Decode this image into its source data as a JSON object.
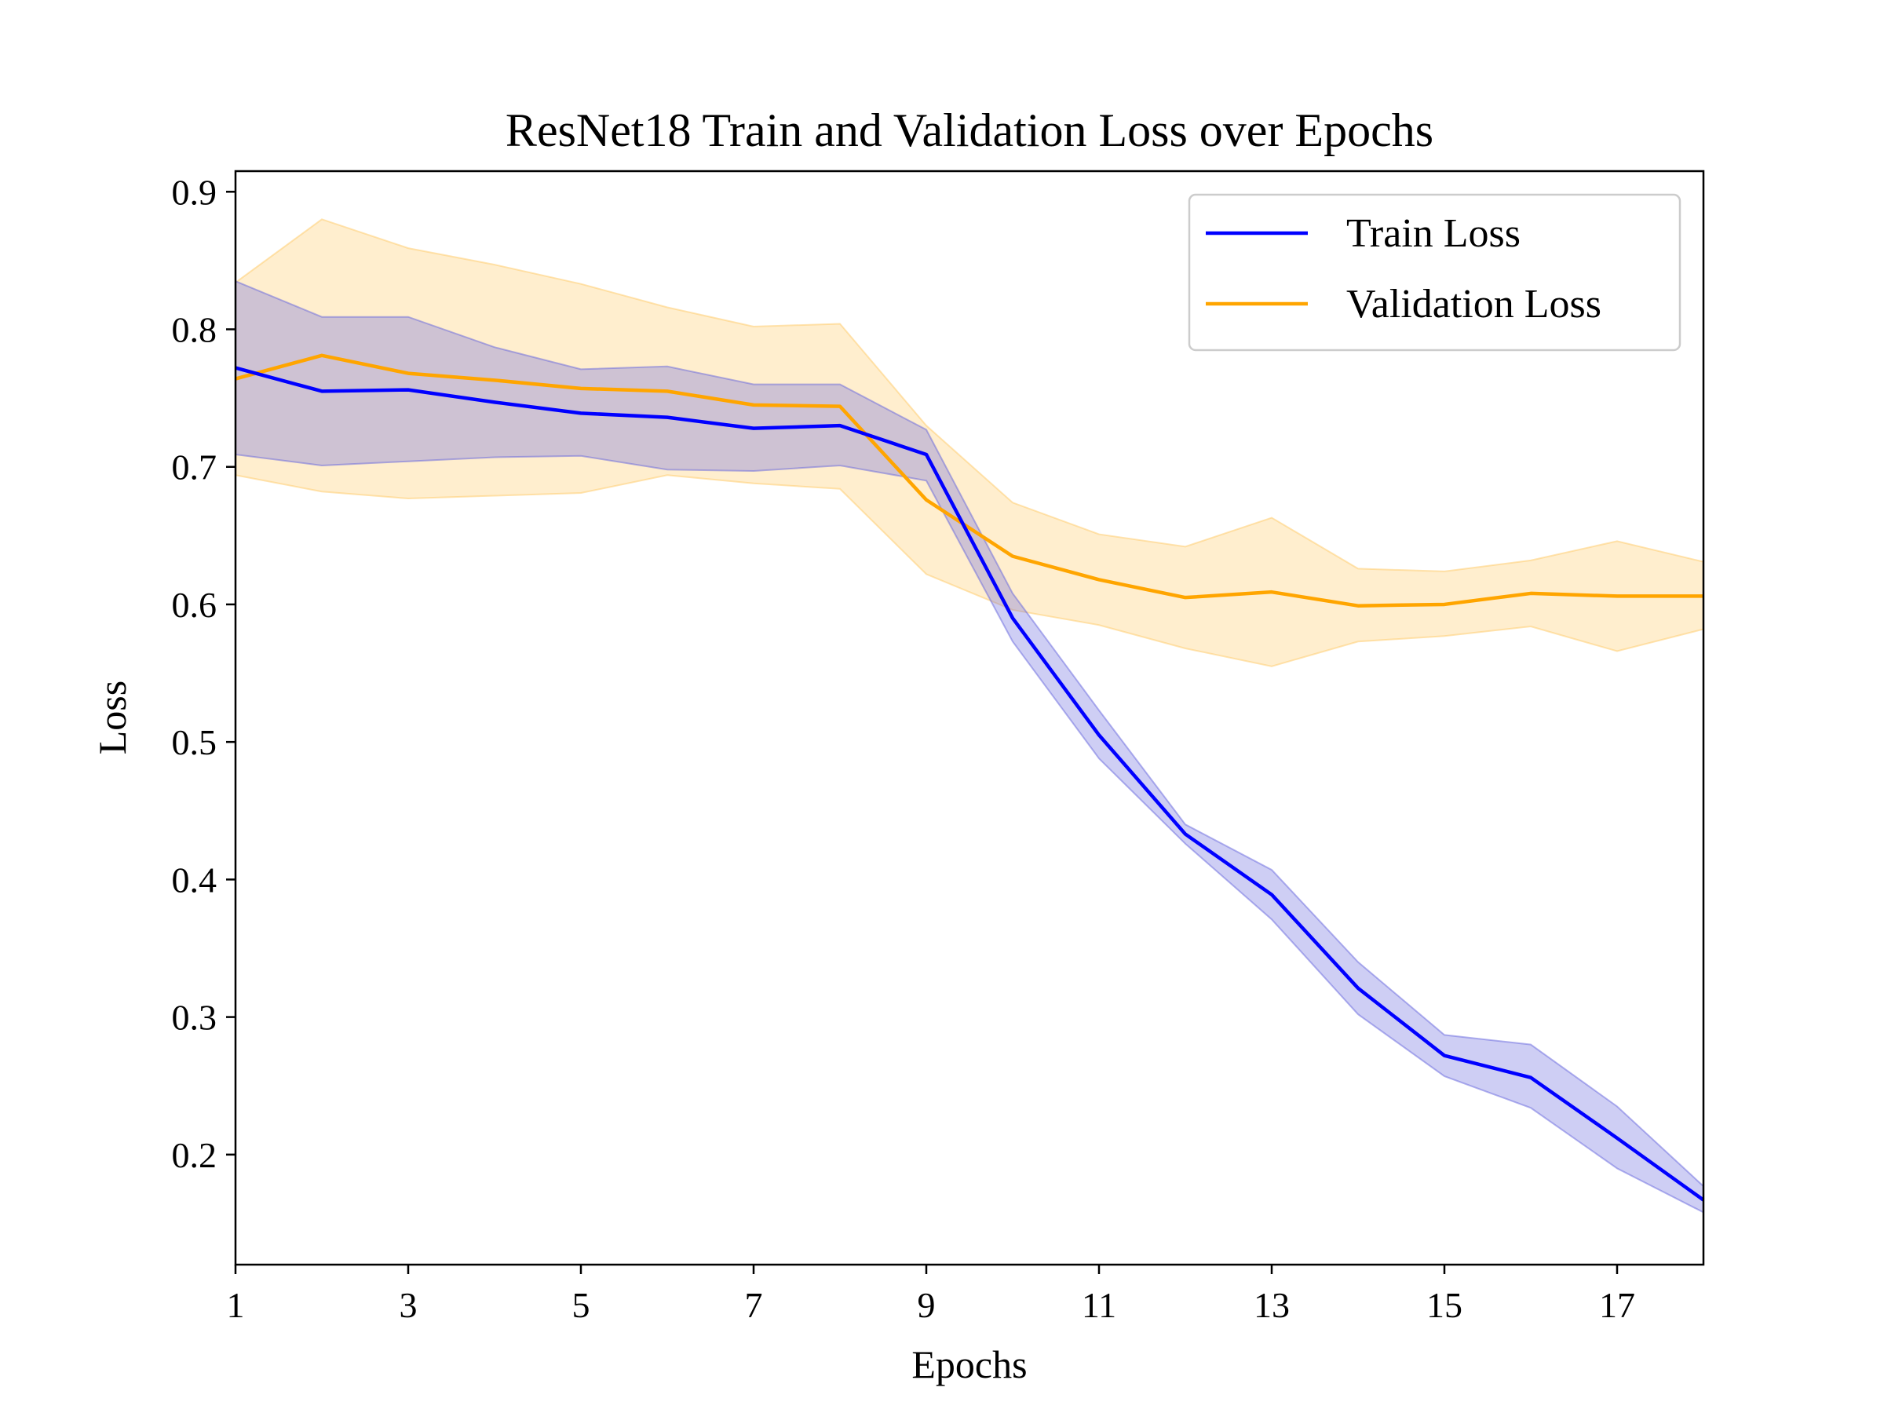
{
  "chart_data": {
    "type": "line",
    "title": "ResNet18 Train and Validation Loss over Epochs",
    "xlabel": "Epochs",
    "ylabel": "Loss",
    "xlim": [
      1,
      18
    ],
    "ylim": [
      0.12,
      0.915
    ],
    "xticks": [
      1,
      3,
      5,
      7,
      9,
      11,
      13,
      15,
      17
    ],
    "xtick_labels": [
      "1",
      "3",
      "5",
      "7",
      "9",
      "11",
      "13",
      "15",
      "17"
    ],
    "yticks": [
      0.2,
      0.3,
      0.4,
      0.5,
      0.6,
      0.7,
      0.8,
      0.9
    ],
    "ytick_labels": [
      "0.2",
      "0.3",
      "0.4",
      "0.5",
      "0.6",
      "0.7",
      "0.8",
      "0.9"
    ],
    "grid": false,
    "legend_position": "top-right",
    "x": [
      1,
      2,
      3,
      4,
      5,
      6,
      7,
      8,
      9,
      10,
      11,
      12,
      13,
      14,
      15,
      16,
      17,
      18
    ],
    "series": [
      {
        "name": "Train Loss",
        "color": "#0000ff",
        "band_color": "#6666dd",
        "values": [
          0.772,
          0.755,
          0.756,
          0.747,
          0.739,
          0.736,
          0.728,
          0.73,
          0.709,
          0.59,
          0.505,
          0.433,
          0.389,
          0.321,
          0.272,
          0.256,
          0.212,
          0.167
        ],
        "upper": [
          0.835,
          0.809,
          0.809,
          0.787,
          0.771,
          0.773,
          0.76,
          0.76,
          0.727,
          0.608,
          0.523,
          0.44,
          0.407,
          0.34,
          0.287,
          0.28,
          0.235,
          0.177
        ],
        "lower": [
          0.709,
          0.701,
          0.704,
          0.707,
          0.708,
          0.698,
          0.697,
          0.701,
          0.69,
          0.573,
          0.488,
          0.426,
          0.371,
          0.302,
          0.257,
          0.234,
          0.19,
          0.158
        ]
      },
      {
        "name": "Validation Loss",
        "color": "#ffa500",
        "band_color": "#ffc966",
        "values": [
          0.764,
          0.781,
          0.768,
          0.763,
          0.757,
          0.755,
          0.745,
          0.744,
          0.676,
          0.635,
          0.618,
          0.605,
          0.609,
          0.599,
          0.6,
          0.608,
          0.606,
          0.606
        ],
        "upper": [
          0.834,
          0.88,
          0.859,
          0.847,
          0.833,
          0.816,
          0.802,
          0.804,
          0.73,
          0.674,
          0.651,
          0.642,
          0.663,
          0.626,
          0.624,
          0.632,
          0.646,
          0.631
        ],
        "lower": [
          0.694,
          0.682,
          0.677,
          0.679,
          0.681,
          0.694,
          0.688,
          0.684,
          0.622,
          0.596,
          0.585,
          0.568,
          0.555,
          0.573,
          0.577,
          0.584,
          0.566,
          0.582
        ]
      }
    ]
  }
}
